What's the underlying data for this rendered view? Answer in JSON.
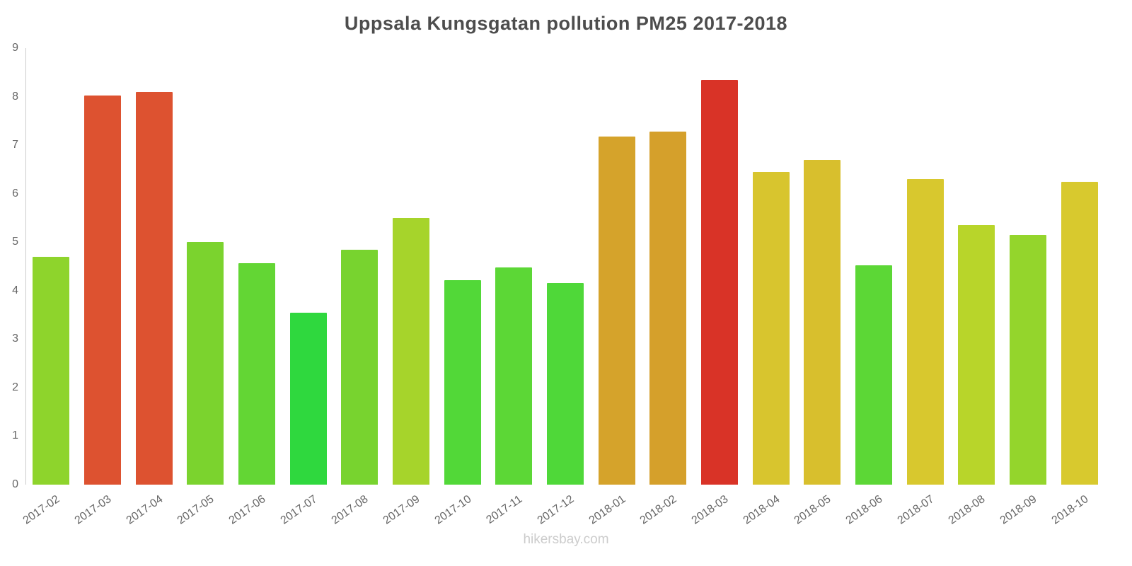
{
  "page": {
    "title": "Uppsala Kungsgatan pollution PM25 2017-2018",
    "footer": "hikersbay.com"
  },
  "chart_data": {
    "type": "bar",
    "title": "Uppsala Kungsgatan pollution PM25 2017-2018",
    "source": "hikersbay.com",
    "xlabel": "",
    "ylabel": "",
    "ylim": [
      0,
      9
    ],
    "yticks": [
      0,
      1,
      2,
      3,
      4,
      5,
      6,
      7,
      8,
      9
    ],
    "grid": false,
    "legend": false,
    "categories": [
      "2017-02",
      "2017-03",
      "2017-04",
      "2017-05",
      "2017-06",
      "2017-07",
      "2017-08",
      "2017-09",
      "2017-10",
      "2017-11",
      "2017-12",
      "2018-01",
      "2018-02",
      "2018-03",
      "2018-04",
      "2018-05",
      "2018-06",
      "2018-07",
      "2018-08",
      "2018-09",
      "2018-10"
    ],
    "values": [
      4.7,
      8.02,
      8.1,
      5.0,
      4.57,
      3.55,
      4.85,
      5.5,
      4.22,
      4.48,
      4.15,
      7.17,
      7.28,
      8.35,
      6.45,
      6.7,
      4.52,
      6.3,
      5.35,
      5.15,
      6.25
    ],
    "bar_colors": [
      "#8ed42c",
      "#dd5230",
      "#dd5230",
      "#7bd32e",
      "#63d634",
      "#2fd83e",
      "#78d32f",
      "#a6d42b",
      "#52d838",
      "#5cd736",
      "#4fd839",
      "#d5a32b",
      "#d5a02b",
      "#d93327",
      "#d8c52e",
      "#d8bf2d",
      "#5cd736",
      "#d8c82e",
      "#b8d52a",
      "#94d52c",
      "#d8c92e"
    ],
    "axis_color": "#cccccc",
    "tick_label_color": "#666666",
    "title_color": "#4d4d4d",
    "footer_color": "#cccccc"
  }
}
